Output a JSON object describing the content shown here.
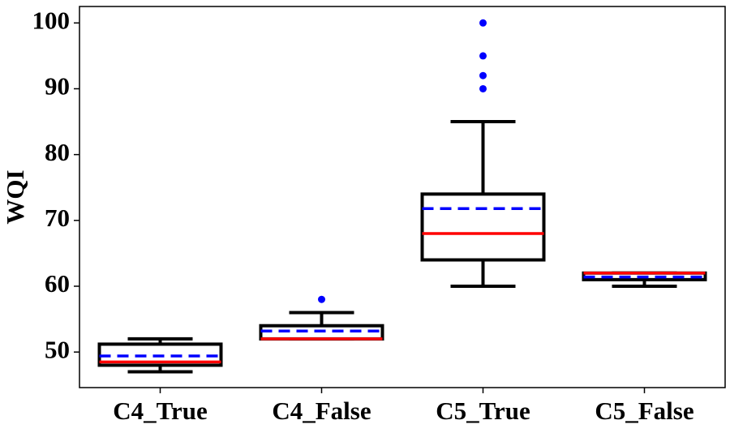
{
  "chart_data": {
    "type": "box",
    "y_label": "WQI",
    "categories": [
      "C4_True",
      "C4_False",
      "C5_True",
      "C5_False"
    ],
    "whisker_low": [
      47,
      52,
      60,
      60
    ],
    "q1": [
      48,
      52,
      64,
      61
    ],
    "median": [
      48.5,
      52,
      68,
      62
    ],
    "mean": [
      49.4,
      53.2,
      71.8,
      61.4
    ],
    "q3": [
      51.2,
      54,
      74,
      62
    ],
    "whisker_high": [
      52,
      56,
      85,
      62
    ],
    "outliers": [
      [],
      [
        58
      ],
      [
        100,
        95,
        92,
        90
      ],
      []
    ],
    "box_color": "#000000",
    "median_color": "#ff0000",
    "mean_color": "#0000ff",
    "outlier_color": "#0000ff",
    "ylim": [
      44.6,
      102.5
    ],
    "yticks": [
      50,
      60,
      70,
      80,
      90,
      100
    ]
  }
}
